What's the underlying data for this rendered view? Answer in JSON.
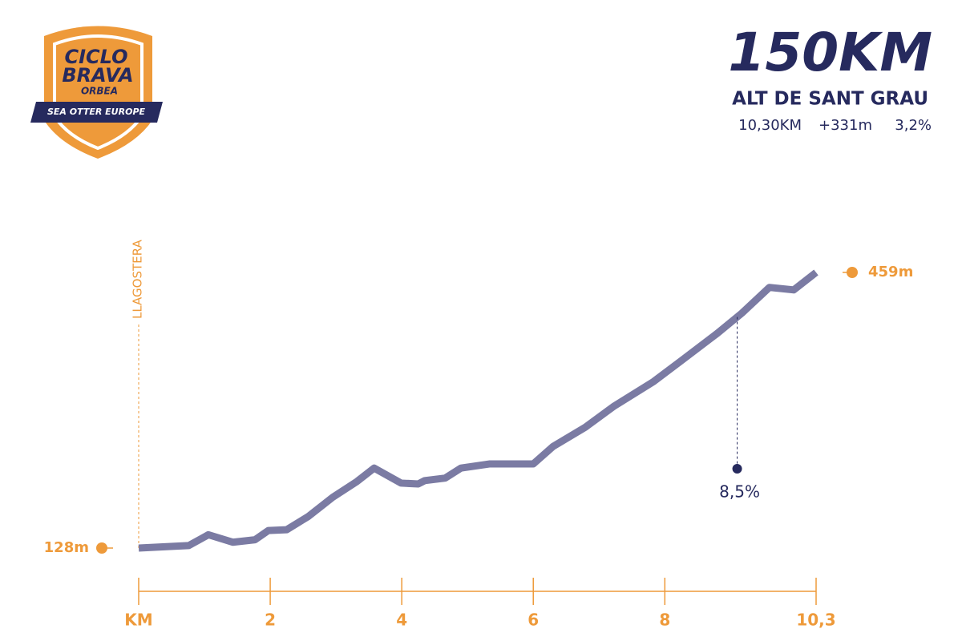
{
  "logo": {
    "line1": "CICLO",
    "line2": "BRAVA",
    "brand": "ORBEA",
    "band": "SEA OTTER EUROPE"
  },
  "header": {
    "title": "150KM",
    "subtitle": "ALT DE SANT GRAU",
    "stats": [
      "10,30KM",
      "+331m",
      "3,2%"
    ]
  },
  "chart_data": {
    "type": "line",
    "start_label": "LLAGOSTERA",
    "x": [
      0,
      0.76,
      1.06,
      1.43,
      1.77,
      1.97,
      2.25,
      2.58,
      2.95,
      3.32,
      3.58,
      3.99,
      4.25,
      4.35,
      4.66,
      4.9,
      5.33,
      6.0,
      6.3,
      6.79,
      7.22,
      7.83,
      8.25,
      8.8,
      9.17,
      9.59,
      9.96,
      10.3
    ],
    "series": [
      {
        "name": "Elevation",
        "color": "#7b7ba3",
        "values": [
          128,
          131,
          144,
          135,
          138,
          149,
          150,
          166,
          189,
          208,
          224,
          206,
          205,
          209,
          212,
          224,
          229,
          229,
          250,
          273,
          298,
          328,
          353,
          386,
          410,
          441,
          438,
          459
        ]
      }
    ],
    "elevation_labels": [
      {
        "value": 128,
        "label": "128m"
      },
      {
        "value": 459,
        "label": "459m"
      }
    ],
    "annotations": [
      {
        "x": 9.1,
        "label": "8,5%"
      }
    ],
    "xlim": [
      0,
      10.3
    ],
    "ylim": [
      128,
      459
    ],
    "xticks": [
      {
        "value": 0,
        "label": "KM"
      },
      2,
      4,
      6,
      8,
      {
        "value": 10.3,
        "label": "10,3"
      }
    ],
    "accent_color": "#ee9a3a",
    "ink_color": "#262a5e"
  }
}
